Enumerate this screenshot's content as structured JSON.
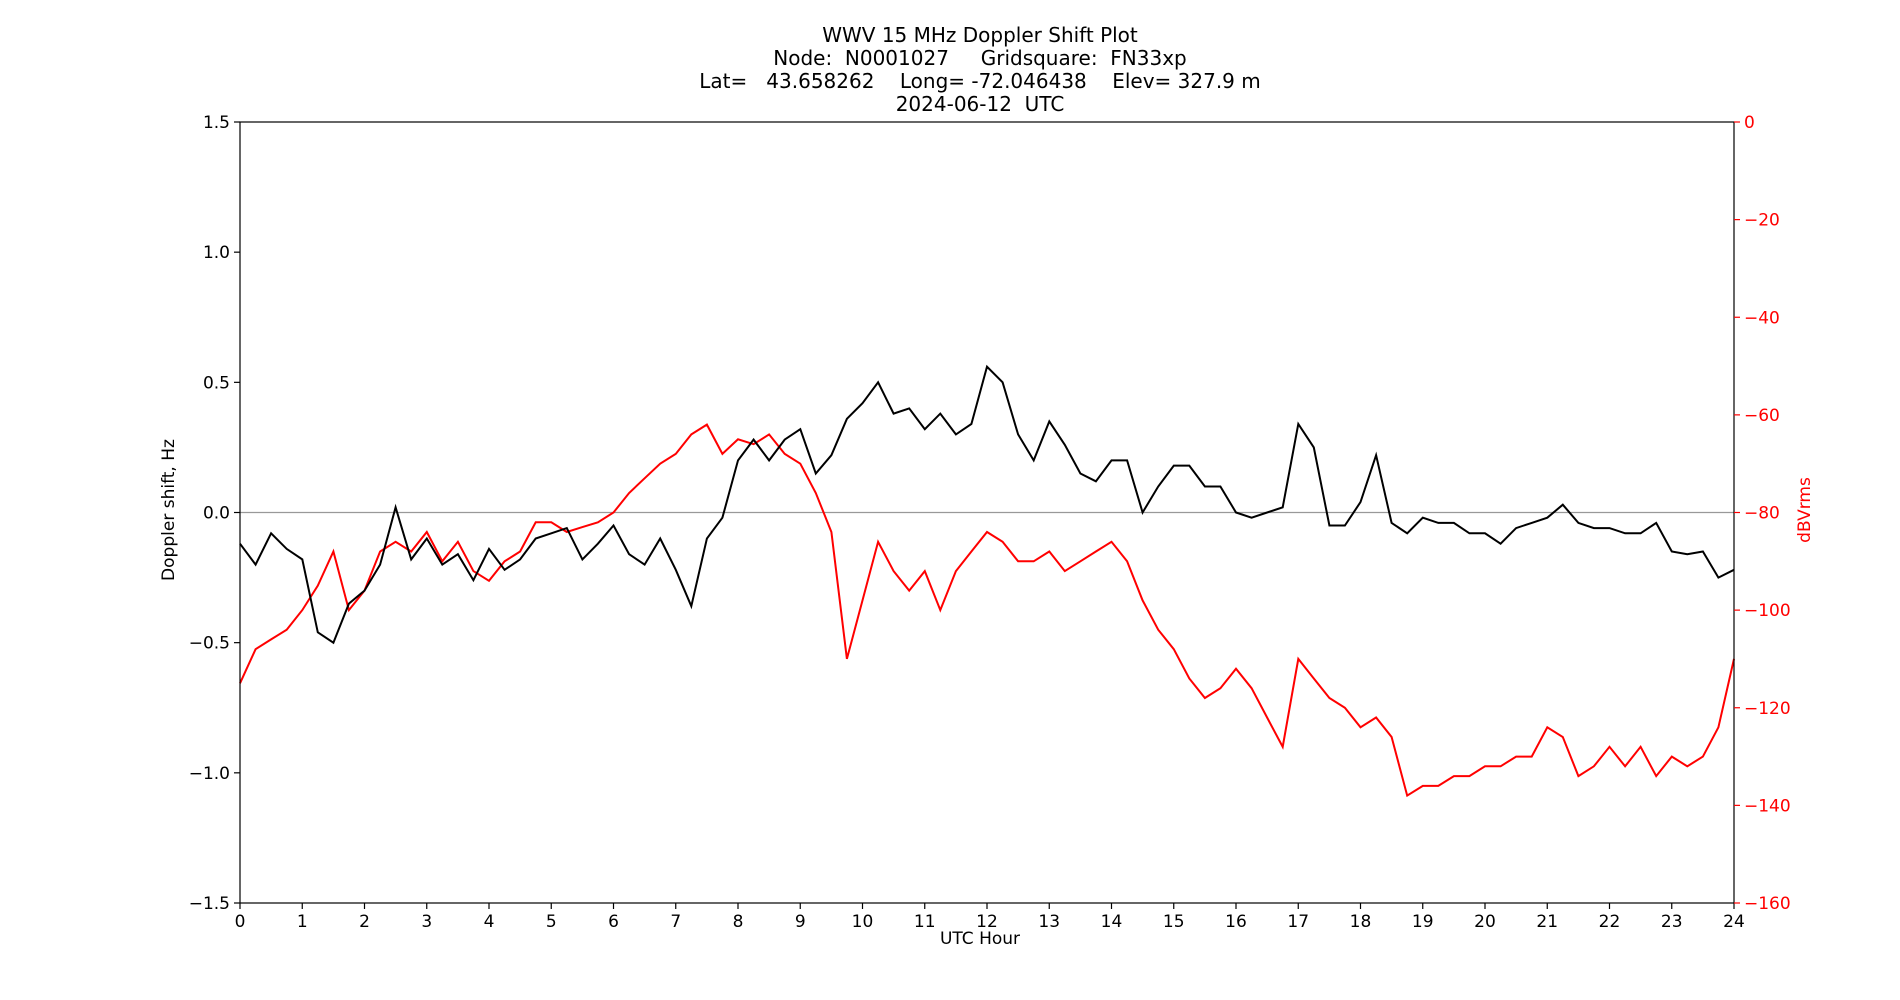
{
  "chart_data": {
    "type": "line",
    "title_lines": [
      "WWV 15 MHz Doppler Shift Plot",
      "Node:  N0001027     Gridsquare:  FN33xp",
      "Lat=   43.658262    Long= -72.046438    Elev= 327.9 m",
      "2024-06-12  UTC"
    ],
    "xlabel": "UTC Hour",
    "ylabel_left": "Doppler shift, Hz",
    "ylabel_right": "dBVrms",
    "xlim": [
      0,
      24
    ],
    "ylim_left": [
      -1.5,
      1.5
    ],
    "ylim_right": [
      -160,
      0
    ],
    "x_ticks": [
      0,
      1,
      2,
      3,
      4,
      5,
      6,
      7,
      8,
      9,
      10,
      11,
      12,
      13,
      14,
      15,
      16,
      17,
      18,
      19,
      20,
      21,
      22,
      23,
      24
    ],
    "x_tick_labels": [
      "0",
      "1",
      "2",
      "3",
      "4",
      "5",
      "6",
      "7",
      "8",
      "9",
      "10",
      "11",
      "12",
      "13",
      "14",
      "15",
      "16",
      "17",
      "18",
      "19",
      "20",
      "21",
      "22",
      "23",
      "24"
    ],
    "y_left_ticks": [
      -1.5,
      -1.0,
      -0.5,
      0.0,
      0.5,
      1.0,
      1.5
    ],
    "y_left_tick_labels": [
      "−1.5",
      "−1.0",
      "−0.5",
      "0.0",
      "0.5",
      "1.0",
      "1.5"
    ],
    "y_right_ticks": [
      -160,
      -140,
      -120,
      -100,
      -80,
      -60,
      -40,
      -20,
      0
    ],
    "y_right_tick_labels": [
      "−160",
      "−140",
      "−120",
      "−100",
      "−80",
      "−60",
      "−40",
      "−20",
      "0"
    ],
    "reference_line_left": 0.0,
    "colors": {
      "doppler": "#000000",
      "power": "#ff0000",
      "zero_line": "#999999",
      "right_axis": "#ff0000"
    },
    "series": [
      {
        "axis": "left",
        "color": "#000000",
        "x": [
          0,
          0.25,
          0.5,
          0.75,
          1,
          1.25,
          1.5,
          1.75,
          2,
          2.25,
          2.5,
          2.75,
          3,
          3.25,
          3.5,
          3.75,
          4,
          4.25,
          4.5,
          4.75,
          5,
          5.25,
          5.5,
          5.75,
          6,
          6.25,
          6.5,
          6.75,
          7,
          7.25,
          7.5,
          7.75,
          8,
          8.25,
          8.5,
          8.75,
          9,
          9.25,
          9.5,
          9.75,
          10,
          10.25,
          10.5,
          10.75,
          11,
          11.25,
          11.5,
          11.75,
          12,
          12.25,
          12.5,
          12.75,
          13,
          13.25,
          13.5,
          13.75,
          14,
          14.25,
          14.5,
          14.75,
          15,
          15.25,
          15.5,
          15.75,
          16,
          16.25,
          16.5,
          16.75,
          17,
          17.25,
          17.5,
          17.75,
          18,
          18.25,
          18.5,
          18.75,
          19,
          19.25,
          19.5,
          19.75,
          20,
          20.25,
          20.5,
          20.75,
          21,
          21.25,
          21.5,
          21.75,
          22,
          22.25,
          22.5,
          22.75,
          23,
          23.25,
          23.5,
          23.75,
          24
        ],
        "y": [
          -0.12,
          -0.2,
          -0.08,
          -0.14,
          -0.18,
          -0.46,
          -0.5,
          -0.35,
          -0.3,
          -0.2,
          0.02,
          -0.18,
          -0.1,
          -0.2,
          -0.16,
          -0.26,
          -0.14,
          -0.22,
          -0.18,
          -0.1,
          -0.08,
          -0.06,
          -0.18,
          -0.12,
          -0.05,
          -0.16,
          -0.2,
          -0.1,
          -0.22,
          -0.36,
          -0.1,
          -0.02,
          0.2,
          0.28,
          0.2,
          0.28,
          0.32,
          0.15,
          0.22,
          0.36,
          0.42,
          0.5,
          0.38,
          0.4,
          0.32,
          0.38,
          0.3,
          0.34,
          0.56,
          0.5,
          0.3,
          0.2,
          0.35,
          0.26,
          0.15,
          0.12,
          0.2,
          0.2,
          0.0,
          0.1,
          0.18,
          0.18,
          0.1,
          0.1,
          0.0,
          -0.02,
          0.0,
          0.02,
          0.34,
          0.25,
          -0.05,
          -0.05,
          0.04,
          0.22,
          -0.04,
          -0.08,
          -0.02,
          -0.04,
          -0.04,
          -0.08,
          -0.08,
          -0.12,
          -0.06,
          -0.04,
          -0.02,
          0.03,
          -0.04,
          -0.06,
          -0.06,
          -0.08,
          -0.08,
          -0.04,
          -0.15,
          -0.16,
          -0.15,
          -0.25,
          -0.22
        ]
      },
      {
        "axis": "right",
        "color": "#ff0000",
        "x": [
          0,
          0.25,
          0.5,
          0.75,
          1,
          1.25,
          1.5,
          1.75,
          2,
          2.25,
          2.5,
          2.75,
          3,
          3.25,
          3.5,
          3.75,
          4,
          4.25,
          4.5,
          4.75,
          5,
          5.25,
          5.5,
          5.75,
          6,
          6.25,
          6.5,
          6.75,
          7,
          7.25,
          7.5,
          7.75,
          8,
          8.25,
          8.5,
          8.75,
          9,
          9.25,
          9.5,
          9.75,
          10,
          10.25,
          10.5,
          10.75,
          11,
          11.25,
          11.5,
          11.75,
          12,
          12.25,
          12.5,
          12.75,
          13,
          13.25,
          13.5,
          13.75,
          14,
          14.25,
          14.5,
          14.75,
          15,
          15.25,
          15.5,
          15.75,
          16,
          16.25,
          16.5,
          16.75,
          17,
          17.25,
          17.5,
          17.75,
          18,
          18.25,
          18.5,
          18.75,
          19,
          19.25,
          19.5,
          19.75,
          20,
          20.25,
          20.5,
          20.75,
          21,
          21.25,
          21.5,
          21.75,
          22,
          22.25,
          22.5,
          22.75,
          23,
          23.25,
          23.5,
          23.75,
          24
        ],
        "y": [
          -115,
          -108,
          -106,
          -104,
          -100,
          -95,
          -88,
          -100,
          -96,
          -88,
          -86,
          -88,
          -84,
          -90,
          -86,
          -92,
          -94,
          -90,
          -88,
          -82,
          -82,
          -84,
          -83,
          -82,
          -80,
          -76,
          -73,
          -70,
          -68,
          -64,
          -62,
          -68,
          -65,
          -66,
          -64,
          -68,
          -70,
          -76,
          -84,
          -110,
          -98,
          -86,
          -92,
          -96,
          -92,
          -100,
          -92,
          -88,
          -84,
          -86,
          -90,
          -90,
          -88,
          -92,
          -90,
          -88,
          -86,
          -90,
          -98,
          -104,
          -108,
          -114,
          -118,
          -116,
          -112,
          -116,
          -122,
          -128,
          -110,
          -114,
          -118,
          -120,
          -124,
          -122,
          -126,
          -138,
          -136,
          -136,
          -134,
          -134,
          -132,
          -132,
          -130,
          -130,
          -124,
          -126,
          -134,
          -132,
          -128,
          -132,
          -128,
          -134,
          -130,
          -132,
          -130,
          -124,
          -110
        ]
      }
    ]
  }
}
